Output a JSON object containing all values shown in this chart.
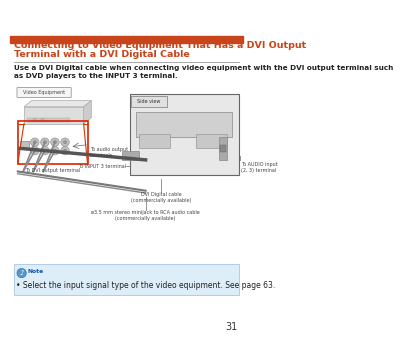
{
  "page_bg": "#ffffff",
  "header_bar_color": "#c8441a",
  "title_line1": "Connecting to Video Equipment That Has a DVI Output",
  "title_line2": "Terminal with a DVI Digital Cable",
  "title_color": "#c8441a",
  "title_fontsize": 6.8,
  "body_text": "Use a DVI Digital cable when connecting video equipment with the DVI output terminal such\nas DVD players to the INPUT 3 terminal.",
  "body_fontsize": 5.2,
  "note_box_color": "#ddeef8",
  "note_text": "• Select the input signal type of the video equipment. See page 63.",
  "note_fontsize": 5.5,
  "note_label": "Note",
  "page_number": "31",
  "page_num_fontsize": 7,
  "label_fs": 3.8,
  "small_fs": 3.5,
  "video_eq_label": "Video Equipment",
  "side_view_label": "Side view",
  "to_input3": "To INPUT 3 terminal",
  "to_audio_input": "To AUDIO input\n(2, 3) terminal",
  "dvi_cable_label": "DVI Digital cable\n(commercially available)",
  "audio_cable_label": "ø3.5 mm stereo minijack to RCA audio cable\n(commercially available)",
  "to_audio_output": "To audio output\nterminals",
  "to_dvi_output": "To DVI output terminal"
}
